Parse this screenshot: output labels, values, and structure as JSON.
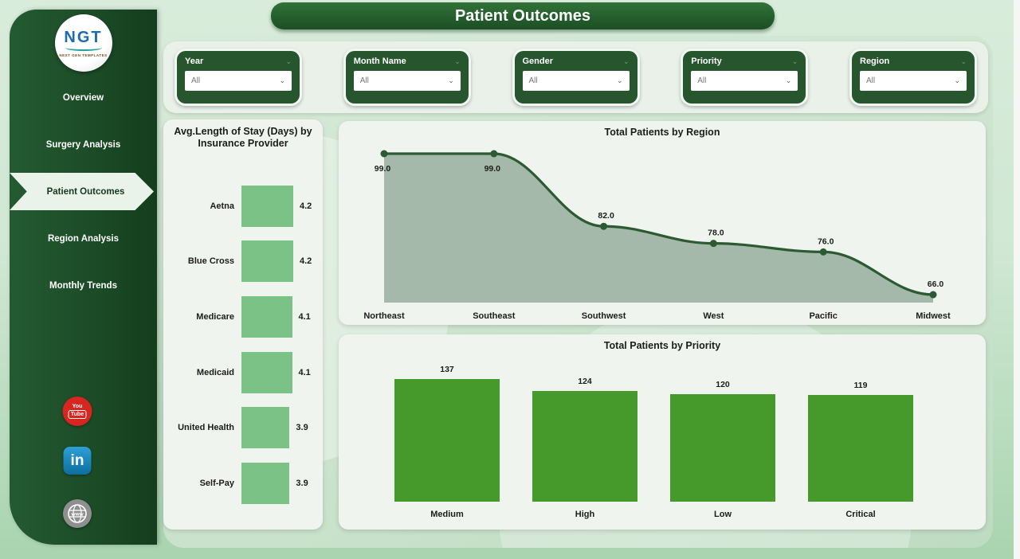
{
  "app": {
    "title": "Patient Outcomes"
  },
  "sidebar": {
    "logo": {
      "text": "NGT",
      "subtext": "NEXT GEN TEMPLATES"
    },
    "items": [
      {
        "label": "Overview",
        "active": false
      },
      {
        "label": "Surgery Analysis",
        "active": false
      },
      {
        "label": "Patient Outcomes",
        "active": true
      },
      {
        "label": "Region Analysis",
        "active": false
      },
      {
        "label": "Monthly Trends",
        "active": false
      }
    ],
    "social": [
      {
        "name": "youtube-icon",
        "line1": "You",
        "line2": "Tube"
      },
      {
        "name": "linkedin-icon",
        "text": "in"
      },
      {
        "name": "website-icon",
        "text": "www"
      }
    ]
  },
  "filters": [
    {
      "label": "Year",
      "value": "All"
    },
    {
      "label": "Month Name",
      "value": "All"
    },
    {
      "label": "Gender",
      "value": "All"
    },
    {
      "label": "Priority",
      "value": "All"
    },
    {
      "label": "Region",
      "value": "All"
    }
  ],
  "chart_data": [
    {
      "type": "bar",
      "orientation": "horizontal",
      "title": "Avg.Length of Stay (Days) by Insurance Provider",
      "categories": [
        "Aetna",
        "Blue Cross",
        "Medicare",
        "Medicaid",
        "United Health",
        "Self-Pay"
      ],
      "values": [
        4.2,
        4.2,
        4.1,
        4.1,
        3.9,
        3.9
      ],
      "xlim": [
        0,
        4.2
      ],
      "bar_color": "#7bc287",
      "grid": false,
      "data_labels": true
    },
    {
      "type": "area",
      "title": "Total Patients by Region",
      "categories": [
        "Northeast",
        "Southeast",
        "Southwest",
        "West",
        "Pacific",
        "Midwest"
      ],
      "values": [
        99.0,
        99.0,
        82.0,
        78.0,
        76.0,
        66.0
      ],
      "data_labels": [
        "99.0",
        "99.0",
        "82.0",
        "78.0",
        "76.0",
        "66.0"
      ],
      "ylim": [
        64,
        101
      ],
      "line_color": "#2c5a33",
      "fill_color": "#9fb5a4",
      "marker": "dot",
      "smooth": true,
      "grid": false
    },
    {
      "type": "bar",
      "orientation": "vertical",
      "title": "Total Patients by Priority",
      "categories": [
        "Medium",
        "High",
        "Low",
        "Critical"
      ],
      "values": [
        137,
        124,
        120,
        119
      ],
      "ylim": [
        0,
        150
      ],
      "bar_color": "#459a2b",
      "grid": false,
      "data_labels": true
    }
  ],
  "colors": {
    "sidebar_green_dark": "#143d1e",
    "sidebar_green": "#1c4c27",
    "banner_green": "#235c2b",
    "filter_card_green": "#27552d",
    "panel_bg": "#f0f4ef",
    "page_mint_top": "#d9ecdb",
    "page_mint_bottom": "#a9d4af",
    "insurance_bar": "#7bc287",
    "priority_bar": "#459a2b",
    "area_fill": "#9fb5a4",
    "area_line": "#2c5a33",
    "youtube_red": "#d6261f",
    "linkedin_blue": "#0e6e9e"
  }
}
